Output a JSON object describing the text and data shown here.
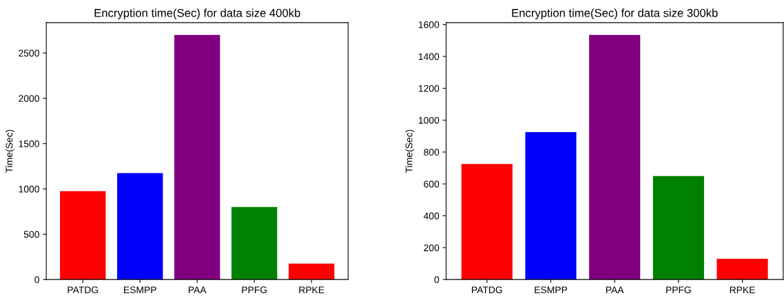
{
  "chart_data": [
    {
      "type": "bar",
      "title": "Encryption time(Sec) for data size 400kb",
      "ylabel": "Time(Sec)",
      "categories": [
        "PATDG",
        "ESMPP",
        "PAA",
        "PPFG",
        "RPKE"
      ],
      "values": [
        975,
        1175,
        2700,
        800,
        175
      ],
      "colors": [
        "#ff0000",
        "#0000ff",
        "#800080",
        "#008000",
        "#ff0000"
      ],
      "ylim": [
        0,
        2835
      ],
      "yticks": [
        0,
        500,
        1000,
        1500,
        2000,
        2500
      ],
      "grid": false
    },
    {
      "type": "bar",
      "title": "Encryption time(Sec) for data size 300kb",
      "ylabel": "Time(Sec)",
      "categories": [
        "PATDG",
        "ESMPP",
        "PAA",
        "PPFG",
        "RPKE"
      ],
      "values": [
        725,
        925,
        1535,
        650,
        130
      ],
      "colors": [
        "#ff0000",
        "#0000ff",
        "#800080",
        "#008000",
        "#ff0000"
      ],
      "ylim": [
        0,
        1612
      ],
      "yticks": [
        0,
        200,
        400,
        600,
        800,
        1000,
        1200,
        1400,
        1600
      ],
      "grid": false
    }
  ]
}
